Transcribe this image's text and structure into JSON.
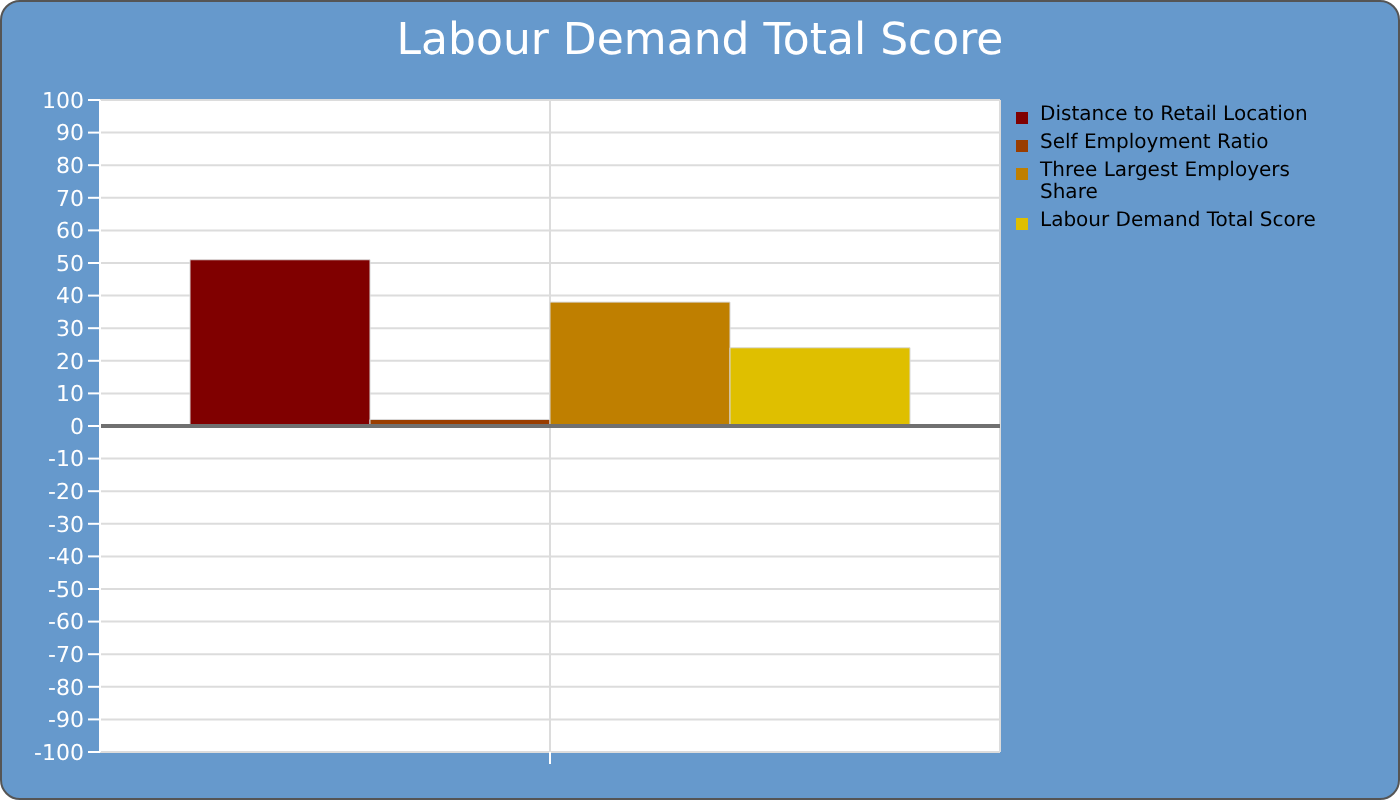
{
  "chart_data": {
    "type": "bar",
    "title": "Labour Demand Total Score",
    "categories": [
      null
    ],
    "series": [
      {
        "name": "Distance to Retail Location",
        "color": "#800000",
        "values": [
          51
        ]
      },
      {
        "name": "Self Employment Ratio",
        "color": "#993d00",
        "values": [
          2
        ]
      },
      {
        "name": "Three Largest Employers Share",
        "color": "#bf7f00",
        "values": [
          38
        ]
      },
      {
        "name": "Labour Demand Total Score",
        "color": "#dfbf00",
        "values": [
          24
        ]
      }
    ],
    "ylim": [
      -100,
      100
    ],
    "yticks": [
      -100,
      -90,
      -80,
      -70,
      -60,
      -50,
      -40,
      -30,
      -20,
      -10,
      0,
      10,
      20,
      30,
      40,
      50,
      60,
      70,
      80,
      90,
      100
    ],
    "ref_lines": [
      {
        "axis": "y",
        "value": 0,
        "color": "#707070"
      }
    ],
    "grid": true,
    "legend": "right"
  }
}
